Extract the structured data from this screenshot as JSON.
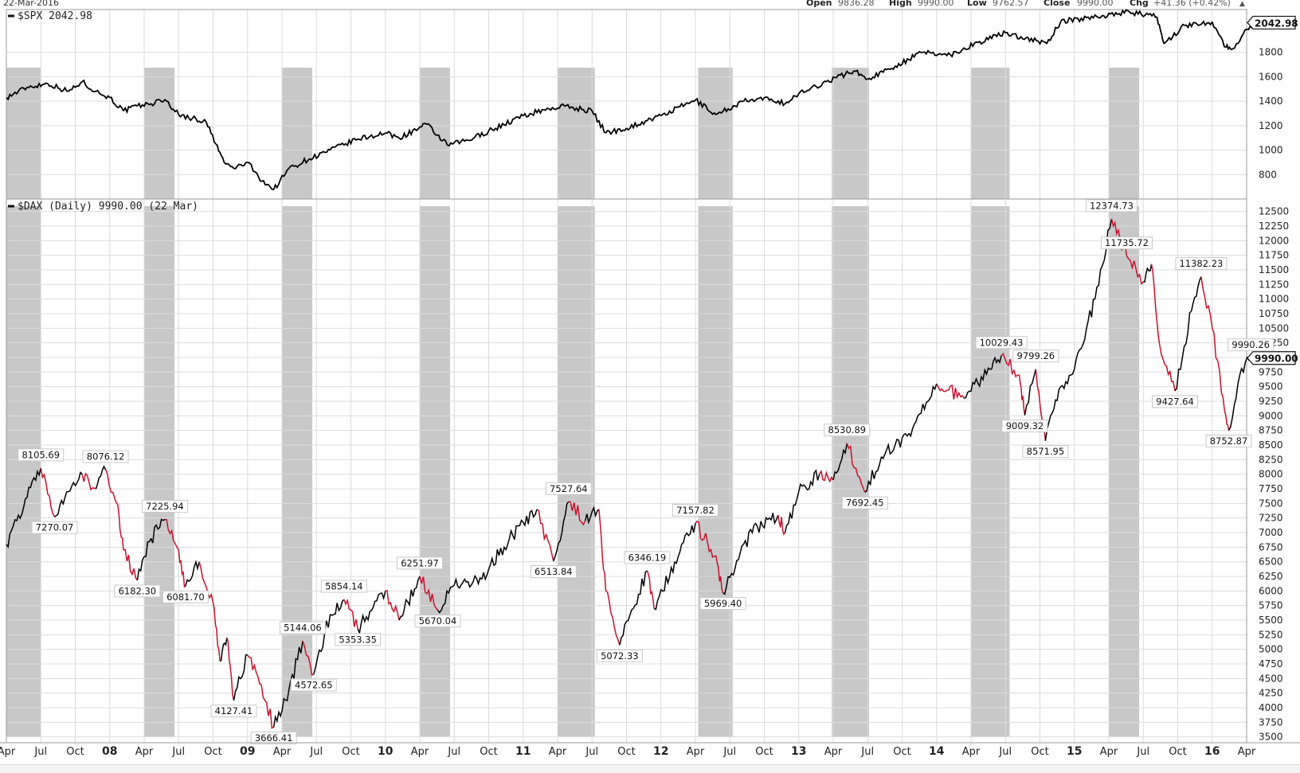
{
  "header": {
    "date": "22-Mar-2016",
    "open_label": "Open",
    "open_value": "9836.28",
    "high_label": "High",
    "high_value": "9990.00",
    "low_label": "Low",
    "low_value": "9762.57",
    "close_label": "Close",
    "close_value": "9990.00",
    "chg_label": "Chg",
    "chg_value": "+41.36 (+0.42%)",
    "chg_arrow": "▲"
  },
  "colors": {
    "up": "#000000",
    "down": "#c8102e",
    "shade": "#c8c8c8",
    "grid": "#dcdcdc"
  },
  "chart_data": [
    {
      "type": "line",
      "title": "$SPX 2042.98",
      "last_value_label": "2042.98",
      "ylim": [
        600,
        2150
      ],
      "yticks": [
        800,
        1000,
        1200,
        1400,
        1600,
        1800
      ],
      "points": [
        [
          2007.25,
          1430
        ],
        [
          2007.4,
          1515
        ],
        [
          2007.55,
          1545
        ],
        [
          2007.7,
          1480
        ],
        [
          2007.8,
          1560
        ],
        [
          2007.9,
          1480
        ],
        [
          2008.0,
          1430
        ],
        [
          2008.1,
          1320
        ],
        [
          2008.2,
          1360
        ],
        [
          2008.3,
          1380
        ],
        [
          2008.4,
          1415
        ],
        [
          2008.5,
          1290
        ],
        [
          2008.6,
          1260
        ],
        [
          2008.7,
          1230
        ],
        [
          2008.77,
          1050
        ],
        [
          2008.83,
          900
        ],
        [
          2008.9,
          850
        ],
        [
          2009.0,
          900
        ],
        [
          2009.08,
          780
        ],
        [
          2009.19,
          676
        ],
        [
          2009.3,
          850
        ],
        [
          2009.45,
          930
        ],
        [
          2009.6,
          1000
        ],
        [
          2009.8,
          1090
        ],
        [
          2010.0,
          1140
        ],
        [
          2010.1,
          1100
        ],
        [
          2010.3,
          1210
        ],
        [
          2010.45,
          1040
        ],
        [
          2010.6,
          1080
        ],
        [
          2010.8,
          1180
        ],
        [
          2011.0,
          1280
        ],
        [
          2011.15,
          1330
        ],
        [
          2011.3,
          1360
        ],
        [
          2011.5,
          1320
        ],
        [
          2011.6,
          1140
        ],
        [
          2011.75,
          1180
        ],
        [
          2011.9,
          1240
        ],
        [
          2012.0,
          1280
        ],
        [
          2012.25,
          1410
        ],
        [
          2012.4,
          1290
        ],
        [
          2012.6,
          1400
        ],
        [
          2012.8,
          1420
        ],
        [
          2012.9,
          1380
        ],
        [
          2013.0,
          1460
        ],
        [
          2013.2,
          1560
        ],
        [
          2013.4,
          1650
        ],
        [
          2013.5,
          1580
        ],
        [
          2013.7,
          1690
        ],
        [
          2013.9,
          1800
        ],
        [
          2014.1,
          1780
        ],
        [
          2014.3,
          1880
        ],
        [
          2014.5,
          1960
        ],
        [
          2014.8,
          1870
        ],
        [
          2014.9,
          2050
        ],
        [
          2015.2,
          2100
        ],
        [
          2015.4,
          2130
        ],
        [
          2015.6,
          2090
        ],
        [
          2015.65,
          1870
        ],
        [
          2015.8,
          2020
        ],
        [
          2016.0,
          2050
        ],
        [
          2016.1,
          1840
        ],
        [
          2016.15,
          1830
        ],
        [
          2016.25,
          1990
        ],
        [
          2016.33,
          2043
        ]
      ]
    },
    {
      "type": "line",
      "title": "$DAX (Daily) 9990.00 (22 Mar)",
      "last_value_label": "9990.00",
      "ylim": [
        3400,
        12700
      ],
      "yticks": [
        3500,
        3750,
        4000,
        4250,
        4500,
        4750,
        5000,
        5250,
        5500,
        5750,
        6000,
        6250,
        6500,
        6750,
        7000,
        7250,
        7500,
        7750,
        8000,
        8250,
        8500,
        8750,
        9000,
        9250,
        9500,
        9750,
        10000,
        10250,
        10500,
        10750,
        11000,
        11250,
        11500,
        11750,
        12000,
        12250,
        12500
      ],
      "points": [
        [
          2007.25,
          6800
        ],
        [
          2007.4,
          7600
        ],
        [
          2007.5,
          8105.69
        ],
        [
          2007.6,
          7270.07
        ],
        [
          2007.7,
          7700
        ],
        [
          2007.8,
          8000
        ],
        [
          2007.9,
          7750
        ],
        [
          2007.97,
          8076.12
        ],
        [
          2008.05,
          7500
        ],
        [
          2008.1,
          6700
        ],
        [
          2008.2,
          6182.3
        ],
        [
          2008.3,
          6900
        ],
        [
          2008.4,
          7225.94
        ],
        [
          2008.5,
          6700
        ],
        [
          2008.55,
          6081.7
        ],
        [
          2008.65,
          6500
        ],
        [
          2008.75,
          5800
        ],
        [
          2008.8,
          4800
        ],
        [
          2008.85,
          5200
        ],
        [
          2008.9,
          4127.41
        ],
        [
          2009.0,
          4900
        ],
        [
          2009.1,
          4400
        ],
        [
          2009.19,
          3666.41
        ],
        [
          2009.3,
          4300
        ],
        [
          2009.4,
          5144.06
        ],
        [
          2009.48,
          4572.65
        ],
        [
          2009.6,
          5600
        ],
        [
          2009.7,
          5854.14
        ],
        [
          2009.8,
          5353.35
        ],
        [
          2010.0,
          6000
        ],
        [
          2010.1,
          5500
        ],
        [
          2010.25,
          6251.97
        ],
        [
          2010.38,
          5670.04
        ],
        [
          2010.5,
          6100
        ],
        [
          2010.7,
          6200
        ],
        [
          2010.9,
          6900
        ],
        [
          2011.1,
          7400
        ],
        [
          2011.22,
          6513.84
        ],
        [
          2011.33,
          7527.64
        ],
        [
          2011.45,
          7200
        ],
        [
          2011.55,
          7400
        ],
        [
          2011.6,
          6000
        ],
        [
          2011.7,
          5072.33
        ],
        [
          2011.8,
          5700
        ],
        [
          2011.9,
          6346.19
        ],
        [
          2011.95,
          5700
        ],
        [
          2012.1,
          6500
        ],
        [
          2012.25,
          7157.82
        ],
        [
          2012.4,
          6600
        ],
        [
          2012.45,
          5969.4
        ],
        [
          2012.6,
          6800
        ],
        [
          2012.7,
          7100
        ],
        [
          2012.85,
          7300
        ],
        [
          2012.9,
          7000
        ],
        [
          2013.0,
          7700
        ],
        [
          2013.15,
          8000
        ],
        [
          2013.25,
          7900
        ],
        [
          2013.35,
          8530.89
        ],
        [
          2013.48,
          7692.45
        ],
        [
          2013.6,
          8300
        ],
        [
          2013.8,
          8700
        ],
        [
          2014.0,
          9550
        ],
        [
          2014.2,
          9300
        ],
        [
          2014.4,
          9800
        ],
        [
          2014.47,
          10029.43
        ],
        [
          2014.6,
          9700
        ],
        [
          2014.64,
          9009.32
        ],
        [
          2014.72,
          9799.26
        ],
        [
          2014.79,
          8571.95
        ],
        [
          2014.9,
          9500
        ],
        [
          2015.0,
          9800
        ],
        [
          2015.15,
          11000
        ],
        [
          2015.27,
          12374.73
        ],
        [
          2015.38,
          11735.72
        ],
        [
          2015.5,
          11300
        ],
        [
          2015.56,
          11600
        ],
        [
          2015.62,
          10200
        ],
        [
          2015.73,
          9427.64
        ],
        [
          2015.85,
          10800
        ],
        [
          2015.92,
          11382.23
        ],
        [
          2016.0,
          10500
        ],
        [
          2016.08,
          9300
        ],
        [
          2016.12,
          8752.87
        ],
        [
          2016.2,
          9700
        ],
        [
          2016.28,
          9990.26
        ],
        [
          2016.33,
          9990
        ]
      ],
      "annotations": [
        {
          "x": 2007.5,
          "y": 8105.69,
          "text": "8105.69",
          "pos": "above"
        },
        {
          "x": 2007.6,
          "y": 7270.07,
          "text": "7270.07",
          "pos": "below"
        },
        {
          "x": 2007.97,
          "y": 8076.12,
          "text": "8076.12",
          "pos": "above"
        },
        {
          "x": 2008.2,
          "y": 6182.3,
          "text": "6182.30",
          "pos": "below"
        },
        {
          "x": 2008.4,
          "y": 7225.94,
          "text": "7225.94",
          "pos": "above"
        },
        {
          "x": 2008.55,
          "y": 6081.7,
          "text": "6081.70",
          "pos": "below"
        },
        {
          "x": 2008.9,
          "y": 4127.41,
          "text": "4127.41",
          "pos": "below"
        },
        {
          "x": 2009.19,
          "y": 3666.41,
          "text": "3666.41",
          "pos": "below"
        },
        {
          "x": 2009.4,
          "y": 5144.06,
          "text": "5144.06",
          "pos": "above"
        },
        {
          "x": 2009.48,
          "y": 4572.65,
          "text": "4572.65",
          "pos": "below"
        },
        {
          "x": 2009.7,
          "y": 5854.14,
          "text": "5854.14",
          "pos": "above"
        },
        {
          "x": 2009.8,
          "y": 5353.35,
          "text": "5353.35",
          "pos": "below"
        },
        {
          "x": 2010.25,
          "y": 6251.97,
          "text": "6251.97",
          "pos": "above"
        },
        {
          "x": 2010.38,
          "y": 5670.04,
          "text": "5670.04",
          "pos": "below"
        },
        {
          "x": 2011.22,
          "y": 6513.84,
          "text": "6513.84",
          "pos": "below"
        },
        {
          "x": 2011.33,
          "y": 7527.64,
          "text": "7527.64",
          "pos": "above"
        },
        {
          "x": 2011.7,
          "y": 5072.33,
          "text": "5072.33",
          "pos": "below"
        },
        {
          "x": 2011.9,
          "y": 6346.19,
          "text": "6346.19",
          "pos": "above"
        },
        {
          "x": 2012.25,
          "y": 7157.82,
          "text": "7157.82",
          "pos": "above"
        },
        {
          "x": 2012.45,
          "y": 5969.4,
          "text": "5969.40",
          "pos": "below"
        },
        {
          "x": 2013.35,
          "y": 8530.89,
          "text": "8530.89",
          "pos": "above"
        },
        {
          "x": 2013.48,
          "y": 7692.45,
          "text": "7692.45",
          "pos": "below"
        },
        {
          "x": 2014.47,
          "y": 10029.43,
          "text": "10029.43",
          "pos": "above"
        },
        {
          "x": 2014.64,
          "y": 9009.32,
          "text": "9009.32",
          "pos": "below"
        },
        {
          "x": 2014.72,
          "y": 9799.26,
          "text": "9799.26",
          "pos": "above"
        },
        {
          "x": 2014.79,
          "y": 8571.95,
          "text": "8571.95",
          "pos": "below"
        },
        {
          "x": 2015.27,
          "y": 12374.73,
          "text": "12374.73",
          "pos": "above"
        },
        {
          "x": 2015.38,
          "y": 11735.72,
          "text": "11735.72",
          "pos": "above"
        },
        {
          "x": 2015.73,
          "y": 9427.64,
          "text": "9427.64",
          "pos": "below"
        },
        {
          "x": 2015.92,
          "y": 11382.23,
          "text": "11382.23",
          "pos": "above"
        },
        {
          "x": 2016.12,
          "y": 8752.87,
          "text": "8752.87",
          "pos": "below"
        },
        {
          "x": 2016.28,
          "y": 9990.26,
          "text": "9990.26",
          "pos": "above"
        }
      ]
    }
  ],
  "x_axis": {
    "xlim": [
      2007.25,
      2016.25
    ],
    "ticks": [
      {
        "x": 2007.25,
        "label": "Apr",
        "bold": false
      },
      {
        "x": 2007.5,
        "label": "Jul",
        "bold": false
      },
      {
        "x": 2007.75,
        "label": "Oct",
        "bold": false
      },
      {
        "x": 2008.0,
        "label": "08",
        "bold": true
      },
      {
        "x": 2008.25,
        "label": "Apr",
        "bold": false
      },
      {
        "x": 2008.5,
        "label": "Jul",
        "bold": false
      },
      {
        "x": 2008.75,
        "label": "Oct",
        "bold": false
      },
      {
        "x": 2009.0,
        "label": "09",
        "bold": true
      },
      {
        "x": 2009.25,
        "label": "Apr",
        "bold": false
      },
      {
        "x": 2009.5,
        "label": "Jul",
        "bold": false
      },
      {
        "x": 2009.75,
        "label": "Oct",
        "bold": false
      },
      {
        "x": 2010.0,
        "label": "10",
        "bold": true
      },
      {
        "x": 2010.25,
        "label": "Apr",
        "bold": false
      },
      {
        "x": 2010.5,
        "label": "Jul",
        "bold": false
      },
      {
        "x": 2010.75,
        "label": "Oct",
        "bold": false
      },
      {
        "x": 2011.0,
        "label": "11",
        "bold": true
      },
      {
        "x": 2011.25,
        "label": "Apr",
        "bold": false
      },
      {
        "x": 2011.5,
        "label": "Jul",
        "bold": false
      },
      {
        "x": 2011.75,
        "label": "Oct",
        "bold": false
      },
      {
        "x": 2012.0,
        "label": "12",
        "bold": true
      },
      {
        "x": 2012.25,
        "label": "Apr",
        "bold": false
      },
      {
        "x": 2012.5,
        "label": "Jul",
        "bold": false
      },
      {
        "x": 2012.75,
        "label": "Oct",
        "bold": false
      },
      {
        "x": 2013.0,
        "label": "13",
        "bold": true
      },
      {
        "x": 2013.25,
        "label": "Apr",
        "bold": false
      },
      {
        "x": 2013.5,
        "label": "Jul",
        "bold": false
      },
      {
        "x": 2013.75,
        "label": "Oct",
        "bold": false
      },
      {
        "x": 2014.0,
        "label": "14",
        "bold": true
      },
      {
        "x": 2014.25,
        "label": "Apr",
        "bold": false
      },
      {
        "x": 2014.5,
        "label": "Jul",
        "bold": false
      },
      {
        "x": 2014.75,
        "label": "Oct",
        "bold": false
      },
      {
        "x": 2015.0,
        "label": "15",
        "bold": true
      },
      {
        "x": 2015.25,
        "label": "Apr",
        "bold": false
      },
      {
        "x": 2015.5,
        "label": "Jul",
        "bold": false
      },
      {
        "x": 2015.75,
        "label": "Oct",
        "bold": false
      },
      {
        "x": 2016.0,
        "label": "16",
        "bold": true
      },
      {
        "x": 2016.25,
        "label": "Apr",
        "bold": false
      }
    ]
  },
  "seasonal_shading": [
    [
      2007.25,
      2007.5
    ],
    [
      2008.25,
      2008.47
    ],
    [
      2009.25,
      2009.47
    ],
    [
      2010.25,
      2010.47
    ],
    [
      2011.25,
      2011.52
    ],
    [
      2012.27,
      2012.52
    ],
    [
      2013.24,
      2013.51
    ],
    [
      2014.25,
      2014.53
    ],
    [
      2015.25,
      2015.47
    ]
  ]
}
